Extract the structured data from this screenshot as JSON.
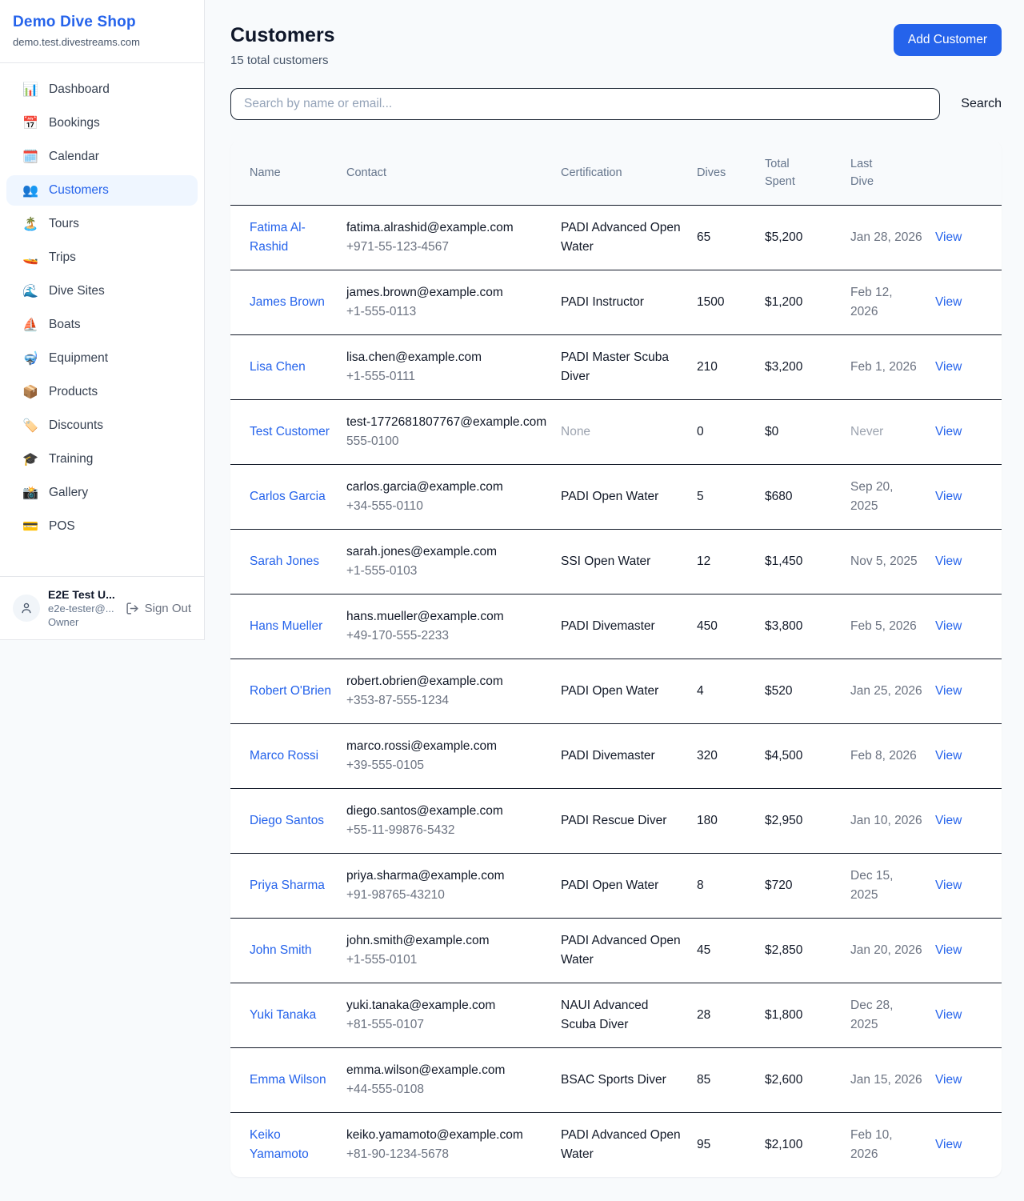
{
  "colors": {
    "accent": "#2563eb",
    "active_item_bg": "#eff6ff",
    "page_bg": "#f8fafc",
    "row_divider": "#111827"
  },
  "sidebar": {
    "shop_name": "Demo Dive Shop",
    "shop_domain": "demo.test.divestreams.com",
    "items": [
      {
        "label": "Dashboard",
        "icon": "📊",
        "icon_name": "bar-chart-icon",
        "active": false
      },
      {
        "label": "Bookings",
        "icon": "📅",
        "icon_name": "calendar-date-icon",
        "active": false
      },
      {
        "label": "Calendar",
        "icon": "🗓️",
        "icon_name": "spiral-calendar-icon",
        "active": false
      },
      {
        "label": "Customers",
        "icon": "👥",
        "icon_name": "people-icon",
        "active": true
      },
      {
        "label": "Tours",
        "icon": "🏝️",
        "icon_name": "island-icon",
        "active": false
      },
      {
        "label": "Trips",
        "icon": "🚤",
        "icon_name": "speedboat-icon",
        "active": false
      },
      {
        "label": "Dive Sites",
        "icon": "🌊",
        "icon_name": "wave-icon",
        "active": false
      },
      {
        "label": "Boats",
        "icon": "⛵",
        "icon_name": "sailboat-icon",
        "active": false
      },
      {
        "label": "Equipment",
        "icon": "🤿",
        "icon_name": "diving-mask-icon",
        "active": false
      },
      {
        "label": "Products",
        "icon": "📦",
        "icon_name": "package-icon",
        "active": false
      },
      {
        "label": "Discounts",
        "icon": "🏷️",
        "icon_name": "label-tag-icon",
        "active": false
      },
      {
        "label": "Training",
        "icon": "🎓",
        "icon_name": "graduation-cap-icon",
        "active": false
      },
      {
        "label": "Gallery",
        "icon": "📸",
        "icon_name": "camera-flash-icon",
        "active": false
      },
      {
        "label": "POS",
        "icon": "💳",
        "icon_name": "credit-card-icon",
        "active": false
      }
    ],
    "user": {
      "name": "E2E Test U...",
      "email": "e2e-tester@...",
      "role": "Owner",
      "sign_out_label": "Sign Out"
    }
  },
  "header": {
    "title": "Customers",
    "subtitle": "15 total customers",
    "add_button_label": "Add Customer"
  },
  "search": {
    "placeholder": "Search by name or email...",
    "button_label": "Search"
  },
  "table": {
    "columns": [
      "Name",
      "Contact",
      "Certification",
      "Dives",
      "Total Spent",
      "Last Dive"
    ],
    "action_label": "View",
    "rows": [
      {
        "name": "Fatima Al-Rashid",
        "email": "fatima.alrashid@example.com",
        "phone": "+971-55-123-4567",
        "certification": "PADI Advanced Open Water",
        "dives": "65",
        "total_spent": "$5,200",
        "last_dive": "Jan 28, 2026"
      },
      {
        "name": "James Brown",
        "email": "james.brown@example.com",
        "phone": "+1-555-0113",
        "certification": "PADI Instructor",
        "dives": "1500",
        "total_spent": "$1,200",
        "last_dive": "Feb 12, 2026"
      },
      {
        "name": "Lisa Chen",
        "email": "lisa.chen@example.com",
        "phone": "+1-555-0111",
        "certification": "PADI Master Scuba Diver",
        "dives": "210",
        "total_spent": "$3,200",
        "last_dive": "Feb 1, 2026"
      },
      {
        "name": "Test Customer",
        "email": "test-1772681807767@example.com",
        "phone": "555-0100",
        "certification": "None",
        "dives": "0",
        "total_spent": "$0",
        "last_dive": "Never"
      },
      {
        "name": "Carlos Garcia",
        "email": "carlos.garcia@example.com",
        "phone": "+34-555-0110",
        "certification": "PADI Open Water",
        "dives": "5",
        "total_spent": "$680",
        "last_dive": "Sep 20, 2025"
      },
      {
        "name": "Sarah Jones",
        "email": "sarah.jones@example.com",
        "phone": "+1-555-0103",
        "certification": "SSI Open Water",
        "dives": "12",
        "total_spent": "$1,450",
        "last_dive": "Nov 5, 2025"
      },
      {
        "name": "Hans Mueller",
        "email": "hans.mueller@example.com",
        "phone": "+49-170-555-2233",
        "certification": "PADI Divemaster",
        "dives": "450",
        "total_spent": "$3,800",
        "last_dive": "Feb 5, 2026"
      },
      {
        "name": "Robert O'Brien",
        "email": "robert.obrien@example.com",
        "phone": "+353-87-555-1234",
        "certification": "PADI Open Water",
        "dives": "4",
        "total_spent": "$520",
        "last_dive": "Jan 25, 2026"
      },
      {
        "name": "Marco Rossi",
        "email": "marco.rossi@example.com",
        "phone": "+39-555-0105",
        "certification": "PADI Divemaster",
        "dives": "320",
        "total_spent": "$4,500",
        "last_dive": "Feb 8, 2026"
      },
      {
        "name": "Diego Santos",
        "email": "diego.santos@example.com",
        "phone": "+55-11-99876-5432",
        "certification": "PADI Rescue Diver",
        "dives": "180",
        "total_spent": "$2,950",
        "last_dive": "Jan 10, 2026"
      },
      {
        "name": "Priya Sharma",
        "email": "priya.sharma@example.com",
        "phone": "+91-98765-43210",
        "certification": "PADI Open Water",
        "dives": "8",
        "total_spent": "$720",
        "last_dive": "Dec 15, 2025"
      },
      {
        "name": "John Smith",
        "email": "john.smith@example.com",
        "phone": "+1-555-0101",
        "certification": "PADI Advanced Open Water",
        "dives": "45",
        "total_spent": "$2,850",
        "last_dive": "Jan 20, 2026"
      },
      {
        "name": "Yuki Tanaka",
        "email": "yuki.tanaka@example.com",
        "phone": "+81-555-0107",
        "certification": "NAUI Advanced Scuba Diver",
        "dives": "28",
        "total_spent": "$1,800",
        "last_dive": "Dec 28, 2025"
      },
      {
        "name": "Emma Wilson",
        "email": "emma.wilson@example.com",
        "phone": "+44-555-0108",
        "certification": "BSAC Sports Diver",
        "dives": "85",
        "total_spent": "$2,600",
        "last_dive": "Jan 15, 2026"
      },
      {
        "name": "Keiko Yamamoto",
        "email": "keiko.yamamoto@example.com",
        "phone": "+81-90-1234-5678",
        "certification": "PADI Advanced Open Water",
        "dives": "95",
        "total_spent": "$2,100",
        "last_dive": "Feb 10, 2026"
      }
    ]
  }
}
